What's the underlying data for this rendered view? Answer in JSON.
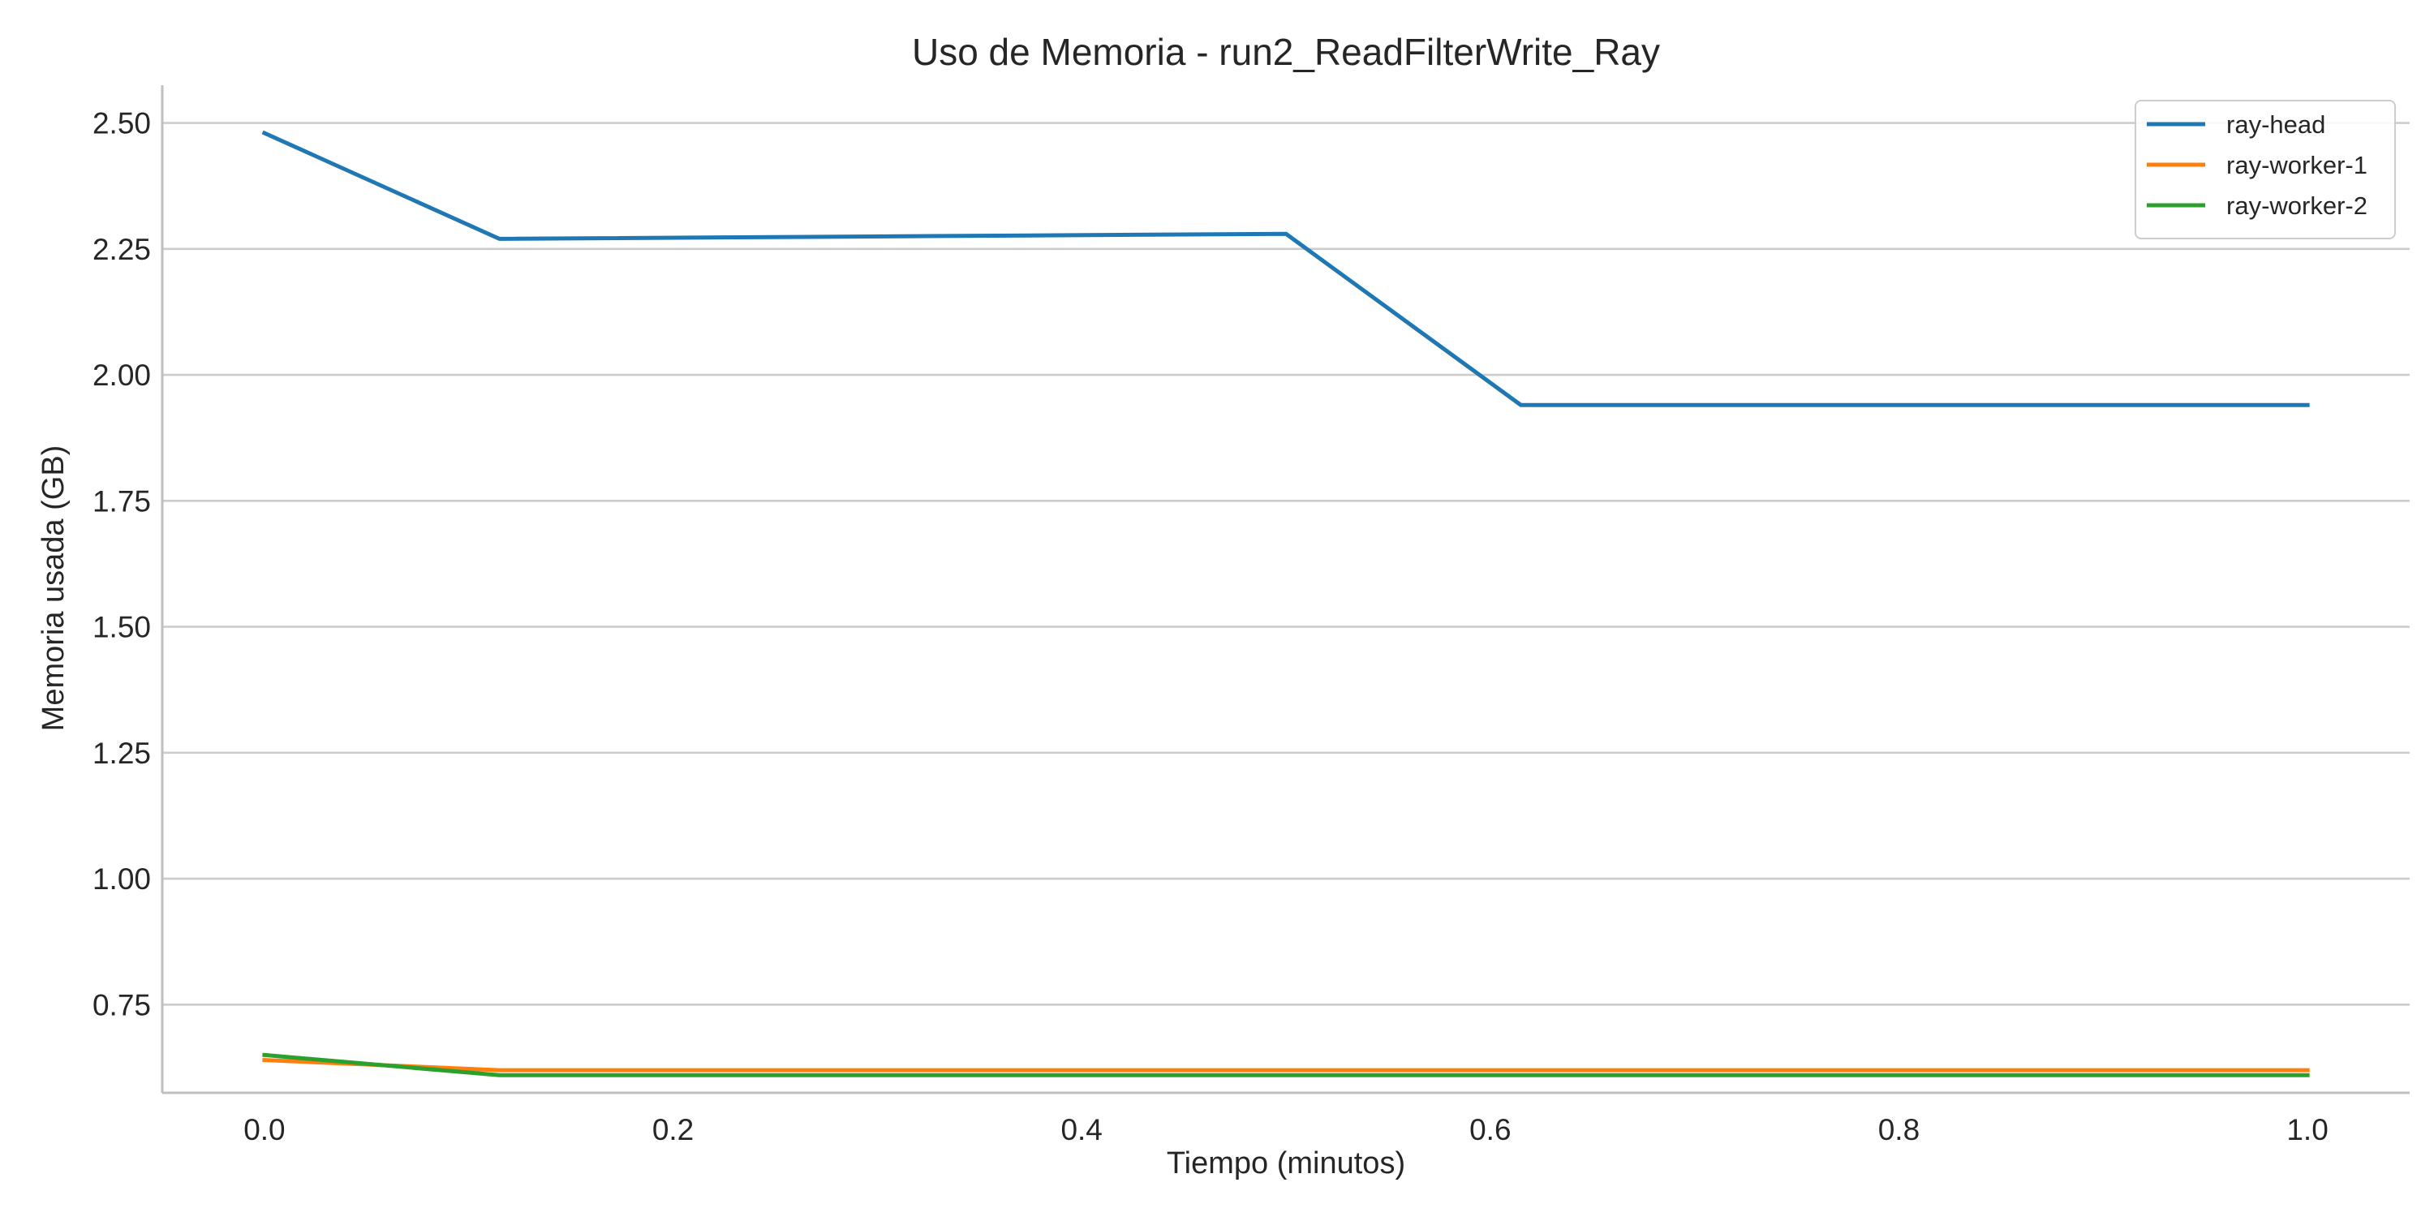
{
  "chart_data": {
    "type": "line",
    "title": "Uso de Memoria - run2_ReadFilterWrite_Ray",
    "xlabel": "Tiempo (minutos)",
    "ylabel": "Memoria usada (GB)",
    "xlim": [
      -0.05,
      1.05
    ],
    "ylim": [
      0.575,
      2.575
    ],
    "xticks": [
      0.0,
      0.2,
      0.4,
      0.6,
      0.8,
      1.0
    ],
    "xtick_labels": [
      "0.0",
      "0.2",
      "0.4",
      "0.6",
      "0.8",
      "1.0"
    ],
    "yticks": [
      0.75,
      1.0,
      1.25,
      1.5,
      1.75,
      2.0,
      2.25,
      2.5
    ],
    "ytick_labels": [
      "0.75",
      "1.00",
      "1.25",
      "1.50",
      "1.75",
      "2.00",
      "2.25",
      "2.50"
    ],
    "grid": "horizontal",
    "legend_position": "top-right",
    "series": [
      {
        "name": "ray-head",
        "color": "#1f77b4",
        "x": [
          0.0,
          0.115,
          0.5,
          0.615,
          1.0
        ],
        "y": [
          2.48,
          2.27,
          2.28,
          1.94,
          1.94
        ]
      },
      {
        "name": "ray-worker-1",
        "color": "#ff7f0e",
        "x": [
          0.0,
          0.115,
          0.5,
          0.615,
          1.0
        ],
        "y": [
          0.64,
          0.62,
          0.62,
          0.62,
          0.62
        ]
      },
      {
        "name": "ray-worker-2",
        "color": "#2ca02c",
        "x": [
          0.0,
          0.115,
          0.5,
          0.615,
          1.0
        ],
        "y": [
          0.65,
          0.61,
          0.61,
          0.61,
          0.61
        ]
      }
    ]
  }
}
